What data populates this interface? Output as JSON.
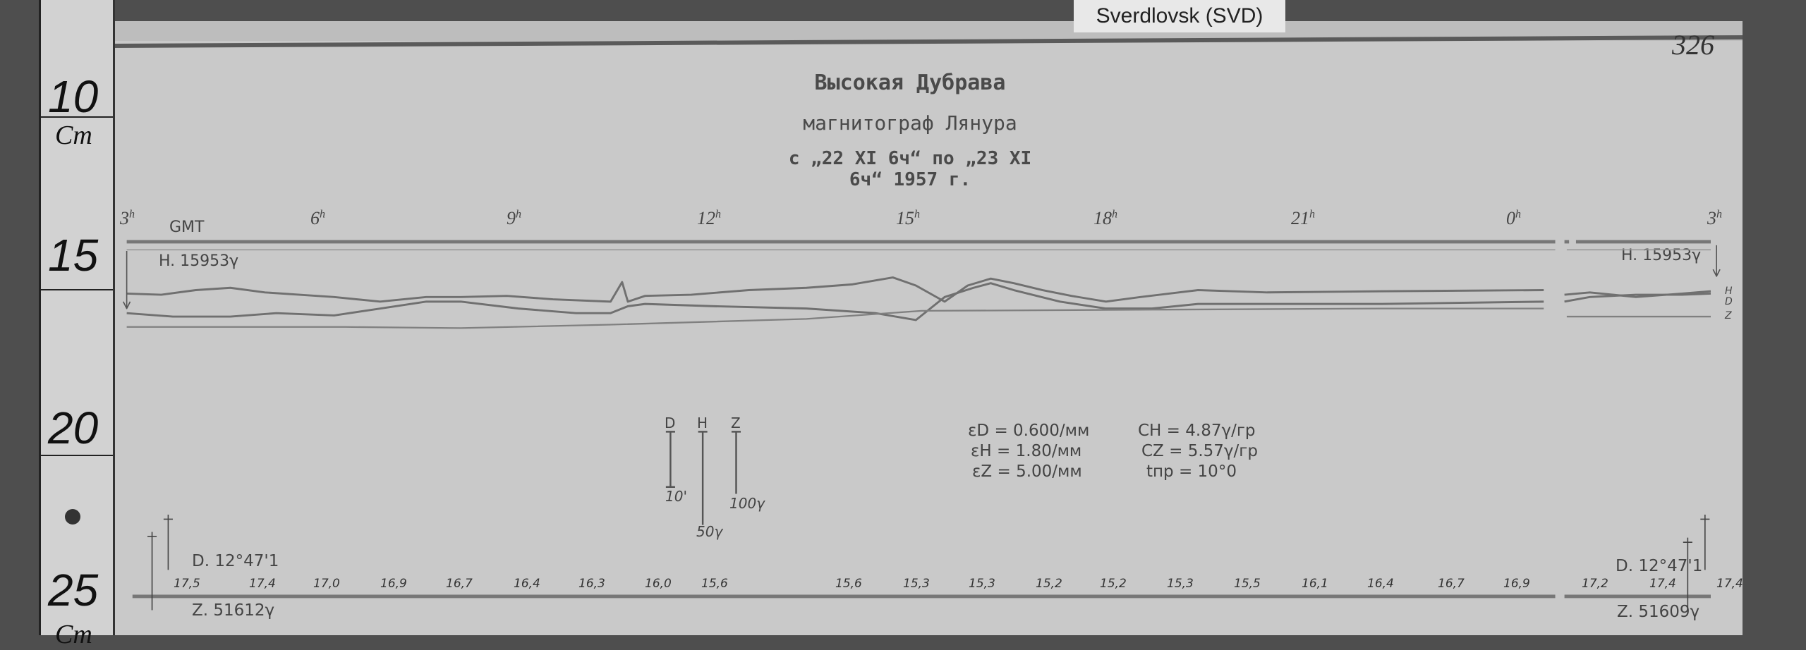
{
  "station_label": "Sverdlovsk (SVD)",
  "sheet_number": "326",
  "ruler": {
    "marks": [
      "10",
      "15",
      "20",
      "25"
    ],
    "unit": "Cm"
  },
  "header": {
    "line1": "Высокая Дубрава",
    "line2": "магнитограф Лянура",
    "line3": "с „22 XI 6ч“ по „23 XI 6ч“ 1957 г."
  },
  "time_axis": {
    "label": "GMT",
    "hours": [
      "3",
      "6",
      "9",
      "12",
      "15",
      "18",
      "21",
      "0",
      "3"
    ],
    "unit": "h"
  },
  "baselines": {
    "h_left": "H. 15953γ",
    "h_right": "H. 15953γ",
    "d_left": "D. 12°47'1",
    "d_right": "D. 12°47'1",
    "z_left": "Z. 51612γ",
    "z_right": "Z. 51609γ"
  },
  "trace_labels": {
    "h": "H",
    "d": "D",
    "z": "Z"
  },
  "scale_bars": [
    {
      "component": "D",
      "value": "10'"
    },
    {
      "component": "H",
      "value": "50γ"
    },
    {
      "component": "Z",
      "value": "100γ"
    }
  ],
  "constants": {
    "eps_d": "εD = 0.600/мм",
    "eps_h": "εH = 1.80/мм",
    "eps_z": "εZ = 5.00/мм",
    "c_h": "CH = 4.87γ/гр",
    "c_z": "CZ = 5.57γ/гр",
    "t_np": "tпр = 10°0"
  },
  "temperatures": [
    "17,5",
    "17,4",
    "17,0",
    "16,9",
    "16,7",
    "16,4",
    "16,3",
    "16,0",
    "15,6",
    "15,6",
    "15,3",
    "15,3",
    "15,2",
    "15,2",
    "15,3",
    "15,5",
    "16,1",
    "16,4",
    "16,7",
    "16,9",
    "17,2",
    "17,4",
    "17,4"
  ],
  "colors": {
    "paper": "#c9c9c9",
    "trace": "#6e6e6e",
    "background": "#4e4e4e"
  }
}
